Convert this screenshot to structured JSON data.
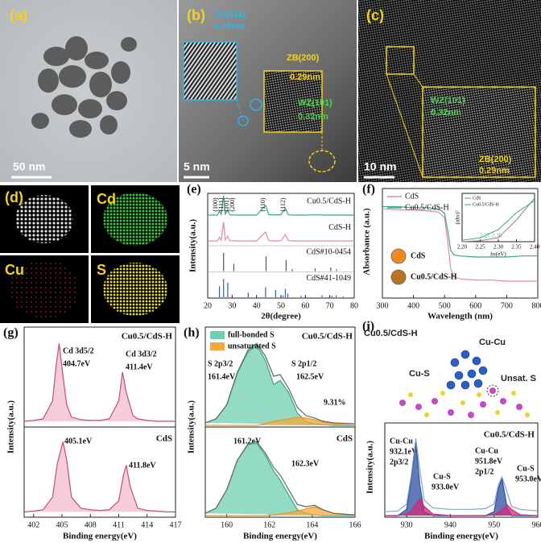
{
  "images": [
    {
      "panel": "(a)",
      "scale_bar": "50 nm"
    },
    {
      "panel": "(b)",
      "scale_bar": "5 nm",
      "annotations": [
        "Cu(111)",
        "0.21nm",
        "ZB(200)",
        "0.29nm",
        "WZ(101)",
        "0.32nm"
      ]
    },
    {
      "panel": "(c)",
      "scale_bar": "10 nm",
      "annotations": [
        "WZ(101)",
        "0.32nm",
        "ZB(200)",
        "0.29nm"
      ]
    },
    {
      "panel": "(d)",
      "maps": [
        "Cd",
        "Cu",
        "S"
      ]
    },
    {
      "sample": "Cu0.5/CdS-H",
      "labels": [
        "Cu-Cu",
        "Cu-S",
        "Unsat. S"
      ]
    }
  ],
  "chart_data": [
    {
      "type": "line",
      "panel": "(e)",
      "xlabel": "2θ(degree)",
      "ylabel": "Intensity(a.u.)",
      "xlim": [
        20,
        80
      ],
      "xticks": [
        20,
        30,
        40,
        50,
        60,
        70,
        80
      ],
      "peak_labels": [
        "(100)",
        "(111)",
        "(101)",
        "(200)",
        "(110)",
        "(112)"
      ],
      "x": [
        20,
        22,
        24,
        24.8,
        25.5,
        26.5,
        27.2,
        28.2,
        29,
        32,
        36,
        40,
        43.7,
        45,
        48,
        50,
        51.8,
        53,
        56,
        60,
        64,
        68,
        72,
        76,
        80
      ],
      "series": [
        {
          "name": "Cu0.5/CdS-H",
          "color": "#3aa58a",
          "values": [
            10,
            10,
            10,
            25,
            12,
            80,
            14,
            30,
            11,
            10,
            10,
            10,
            45,
            12,
            10,
            12,
            35,
            11,
            10,
            10,
            11,
            10,
            10,
            10,
            10
          ]
        },
        {
          "name": "CdS-H",
          "color": "#e48aa0",
          "values": [
            10,
            10,
            10,
            22,
            12,
            70,
            13,
            25,
            11,
            10,
            10,
            10,
            38,
            11,
            10,
            11,
            30,
            11,
            10,
            10,
            10,
            10,
            10,
            10,
            10
          ]
        }
      ],
      "references": [
        {
          "name": "CdS#10-0454",
          "color": "#555555",
          "x": [
            26.5,
            30.7,
            43.9,
            52.1,
            54.6,
            64.0,
            70.4,
            72.8
          ],
          "values": [
            100,
            40,
            80,
            60,
            10,
            15,
            20,
            10
          ]
        },
        {
          "name": "CdS#41-1049",
          "color": "#2e5fa8",
          "x": [
            24.8,
            26.5,
            28.2,
            36.6,
            43.7,
            47.8,
            50.9,
            51.8,
            52.8,
            58.3,
            66.8,
            70.9,
            72.6,
            75.5
          ],
          "values": [
            60,
            100,
            80,
            25,
            55,
            40,
            10,
            45,
            20,
            8,
            10,
            8,
            10,
            5
          ]
        }
      ]
    },
    {
      "type": "line",
      "panel": "(f)",
      "xlabel": "Wavelength (nm)",
      "ylabel": "Absorbance (a.u.)",
      "xlim": [
        300,
        800
      ],
      "xticks": [
        300,
        400,
        500,
        600,
        700,
        800
      ],
      "x": [
        300,
        350,
        400,
        450,
        480,
        500,
        510,
        520,
        530,
        550,
        600,
        650,
        700,
        750,
        800
      ],
      "series": [
        {
          "name": "CdS",
          "color": "#e48aa0",
          "values": [
            80,
            79,
            79,
            78,
            77,
            72,
            50,
            25,
            18,
            16,
            15,
            15,
            14,
            14,
            14
          ]
        },
        {
          "name": "Cu0.5/CdS-H",
          "color": "#3aa58a",
          "values": [
            82,
            82,
            81,
            81,
            80,
            76,
            60,
            42,
            38,
            37,
            36,
            36,
            36,
            37,
            37
          ]
        }
      ],
      "photo_labels": [
        "CdS",
        "Cu0.5/CdS-H"
      ],
      "inset": {
        "xlabel": "hν(eV)",
        "ylabel": "(αhν)²",
        "xlim": [
          2.2,
          2.4
        ],
        "xticks": [
          {
            "value": 2.2,
            "label": "2.20"
          },
          2.25,
          {
            "value": 2.3,
            "label": "2.30"
          },
          2.35,
          {
            "value": 2.4,
            "label": "2.40"
          }
        ],
        "x": [
          2.2,
          2.25,
          2.3,
          2.35,
          2.4
        ],
        "series": [
          {
            "name": "CdS",
            "color": "#888888",
            "values": [
              0,
              2,
              8,
              45,
              90
            ]
          },
          {
            "name": "Cu0.5/CdS-H",
            "color": "#3aa58a",
            "values": [
              3,
              8,
              25,
              60,
              85
            ]
          }
        ],
        "annotations": [
          "2.27",
          "2.30"
        ]
      }
    },
    {
      "type": "line",
      "panel": "(g)",
      "sample": "Cu0.5/CdS-H",
      "xlim": [
        401,
        417
      ],
      "x": [
        401,
        402,
        403,
        404,
        404.4,
        404.7,
        405,
        405.5,
        406,
        407,
        408,
        409,
        410,
        411,
        411.4,
        411.8,
        412.5,
        413,
        414,
        415,
        416,
        417
      ],
      "series": [
        {
          "color": "#c0506e",
          "fill": "#f2bccb",
          "values": [
            5,
            6,
            8,
            30,
            75,
            100,
            70,
            25,
            10,
            7,
            6,
            6,
            8,
            30,
            65,
            40,
            12,
            8,
            6,
            5,
            5,
            5
          ]
        }
      ],
      "annotations": [
        "Cd 3d5/2",
        "404.7eV",
        "Cd 3d3/2",
        "411.4eV"
      ]
    },
    {
      "type": "line",
      "sample": "CdS",
      "xlabel": "Binding energy(eV)",
      "ylabel": "Intensity(a.u.)",
      "xlim": [
        401,
        417
      ],
      "xticks": [
        402,
        405,
        408,
        411,
        414,
        417
      ],
      "x": [
        401,
        402,
        403,
        404,
        404.5,
        405.1,
        405.5,
        406,
        407,
        408,
        409,
        410,
        411,
        411.5,
        411.8,
        412.2,
        413,
        414,
        415,
        416,
        417
      ],
      "series": [
        {
          "color": "#c0506e",
          "fill": "#f2bccb",
          "values": [
            5,
            6,
            8,
            25,
            70,
            100,
            75,
            25,
            10,
            8,
            7,
            8,
            20,
            55,
            68,
            40,
            10,
            7,
            6,
            5,
            5
          ]
        }
      ],
      "annotations": [
        "405.1eV",
        "411.8eV"
      ]
    },
    {
      "type": "line",
      "panel": "(h)",
      "sample": "Cu0.5/CdS-H",
      "xlim": [
        159,
        166
      ],
      "x": [
        159,
        159.5,
        160,
        160.5,
        161,
        161.4,
        161.8,
        162.2,
        162.5,
        162.9,
        163.3,
        163.7,
        164.1,
        164.5,
        165,
        166
      ],
      "series": [
        {
          "name": "full-bonded S",
          "color": "#3aa58a",
          "fill": "#6fcfae",
          "values": [
            3,
            8,
            25,
            64,
            90,
            98,
            80,
            50,
            55,
            40,
            15,
            5,
            2,
            1,
            0,
            0
          ]
        },
        {
          "name": "unsaturated S",
          "color": "#e8962a",
          "fill": "#f2a93a",
          "values": [
            0,
            0,
            0,
            0,
            0,
            0,
            2,
            5,
            6,
            8,
            10,
            9,
            7,
            4,
            2,
            0
          ]
        },
        {
          "color": "#666666",
          "values": [
            3,
            8,
            25,
            65,
            92,
            100,
            85,
            60,
            62,
            45,
            22,
            12,
            9,
            5,
            3,
            2
          ]
        }
      ],
      "annotations": [
        "S 2p3/2",
        "161.4eV",
        "S 2p1/2",
        "162.5eV",
        "9.31%"
      ]
    },
    {
      "type": "line",
      "sample": "CdS",
      "xlabel": "Binding energy(eV)",
      "ylabel": "Intensity(a.u.)",
      "xlim": [
        159,
        166
      ],
      "xticks": [
        160,
        162,
        164,
        166
      ],
      "x": [
        159,
        159.5,
        160,
        160.5,
        161,
        161.4,
        161.8,
        162.2,
        162.5,
        162.9,
        163.3,
        163.7,
        164.1,
        164.5,
        165,
        166
      ],
      "series": [
        {
          "color": "#3aa58a",
          "fill": "#6fcfae",
          "values": [
            3,
            10,
            35,
            75,
            96,
            98,
            82,
            60,
            48,
            28,
            8,
            3,
            1,
            0,
            0,
            0
          ]
        },
        {
          "color": "#e8962a",
          "fill": "#f2a93a",
          "values": [
            0,
            0,
            0,
            0,
            0,
            0,
            0,
            1,
            2,
            4,
            6,
            9,
            12,
            8,
            3,
            0
          ]
        },
        {
          "color": "#666666",
          "values": [
            3,
            10,
            35,
            75,
            97,
            100,
            85,
            65,
            55,
            35,
            15,
            12,
            14,
            8,
            3,
            1
          ]
        }
      ],
      "annotations": [
        "161.2eV",
        "162.3eV"
      ]
    },
    {
      "type": "line",
      "panel": "(i)",
      "sample": "Cu0.5/CdS-H",
      "xlabel": "Binding energy(eV)",
      "ylabel": "Intensity(a.u.)",
      "xlim": [
        925,
        960
      ],
      "xticks": [
        930,
        940,
        950,
        960
      ],
      "x": [
        925,
        928,
        930,
        931,
        932.1,
        933,
        934,
        936,
        940,
        945,
        948,
        950,
        951,
        951.8,
        953,
        954,
        956,
        960
      ],
      "series": [
        {
          "color": "#2b4fa0",
          "fill": "#2b4fa0",
          "values": [
            0,
            0,
            8,
            45,
            95,
            40,
            5,
            0,
            0,
            0,
            0,
            5,
            35,
            48,
            10,
            0,
            0,
            0
          ]
        },
        {
          "color": "#d02a7a",
          "fill": "#d02a7a",
          "values": [
            0,
            0,
            2,
            6,
            15,
            22,
            12,
            2,
            0,
            0,
            0,
            1,
            4,
            8,
            14,
            8,
            1,
            0
          ]
        },
        {
          "color": "#8aa0c8",
          "values": [
            5,
            6,
            15,
            50,
            100,
            60,
            20,
            10,
            8,
            8,
            9,
            15,
            40,
            50,
            30,
            12,
            8,
            6
          ]
        }
      ],
      "annotations": [
        "Cu-Cu",
        "932.1eV",
        "2p3/2",
        "Cu-S",
        "933.0eV",
        "Cu-Cu",
        "951.8eV",
        "2p1/2",
        "Cu-S",
        "953.0eV"
      ]
    }
  ]
}
